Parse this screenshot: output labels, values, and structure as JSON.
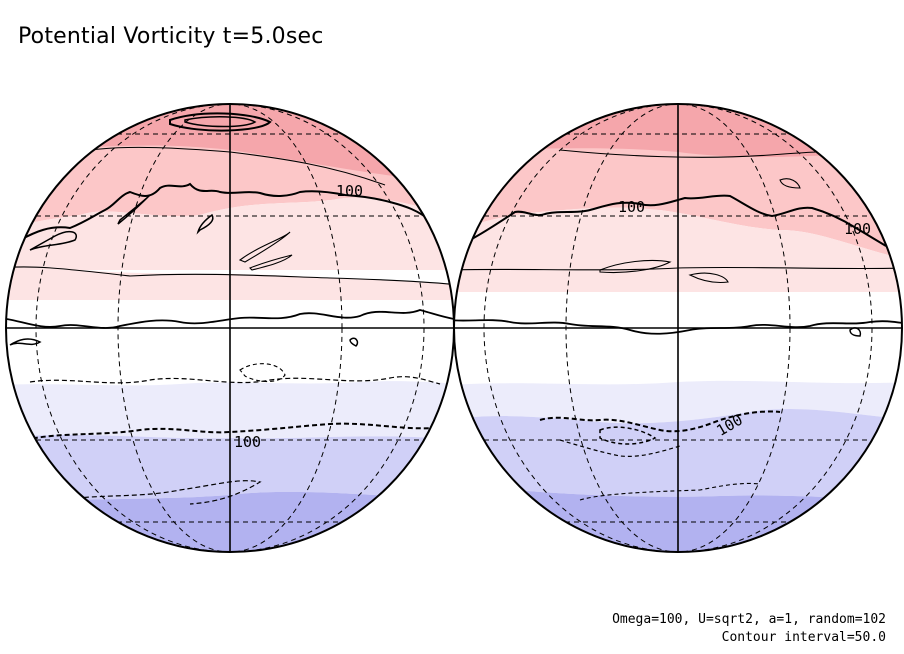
{
  "title": "Potential Vorticity t=5.0sec",
  "contour_labels": [
    "100",
    "100",
    "100",
    "100",
    "100"
  ],
  "footer": {
    "params": "Omega=100, U=sqrt2, a=1, random=102",
    "contour_interval": "Contour interval=50.0"
  },
  "colors": {
    "band_n3": "#f5a6ab",
    "band_n2": "#fcc7c8",
    "band_n1": "#fde4e4",
    "band_0": "#ffffff",
    "band_s1": "#ececfb",
    "band_s2": "#d0d0f7",
    "band_s3": "#b2b2f0"
  }
}
